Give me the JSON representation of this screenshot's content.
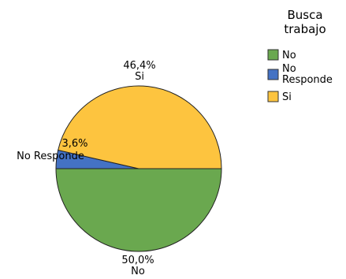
{
  "chart_data": {
    "type": "pie",
    "title": "",
    "legend": {
      "title_lines": [
        "Busca",
        "trabajo"
      ],
      "placement": "top-right",
      "entries": [
        {
          "label_lines": [
            "No"
          ],
          "color": "#6aa84f"
        },
        {
          "label_lines": [
            "No",
            "Responde"
          ],
          "color": "#4472c4"
        },
        {
          "label_lines": [
            "Si"
          ],
          "color": "#fdc43f"
        }
      ]
    },
    "slices": [
      {
        "category": "No",
        "value": 50.0,
        "label": "50,0%",
        "color": "#6aa84f"
      },
      {
        "category": "No Responde",
        "value": 3.6,
        "label": "3,6%",
        "color": "#4472c4"
      },
      {
        "category": "Si",
        "value": 46.4,
        "label": "46,4%",
        "color": "#fdc43f"
      }
    ]
  }
}
